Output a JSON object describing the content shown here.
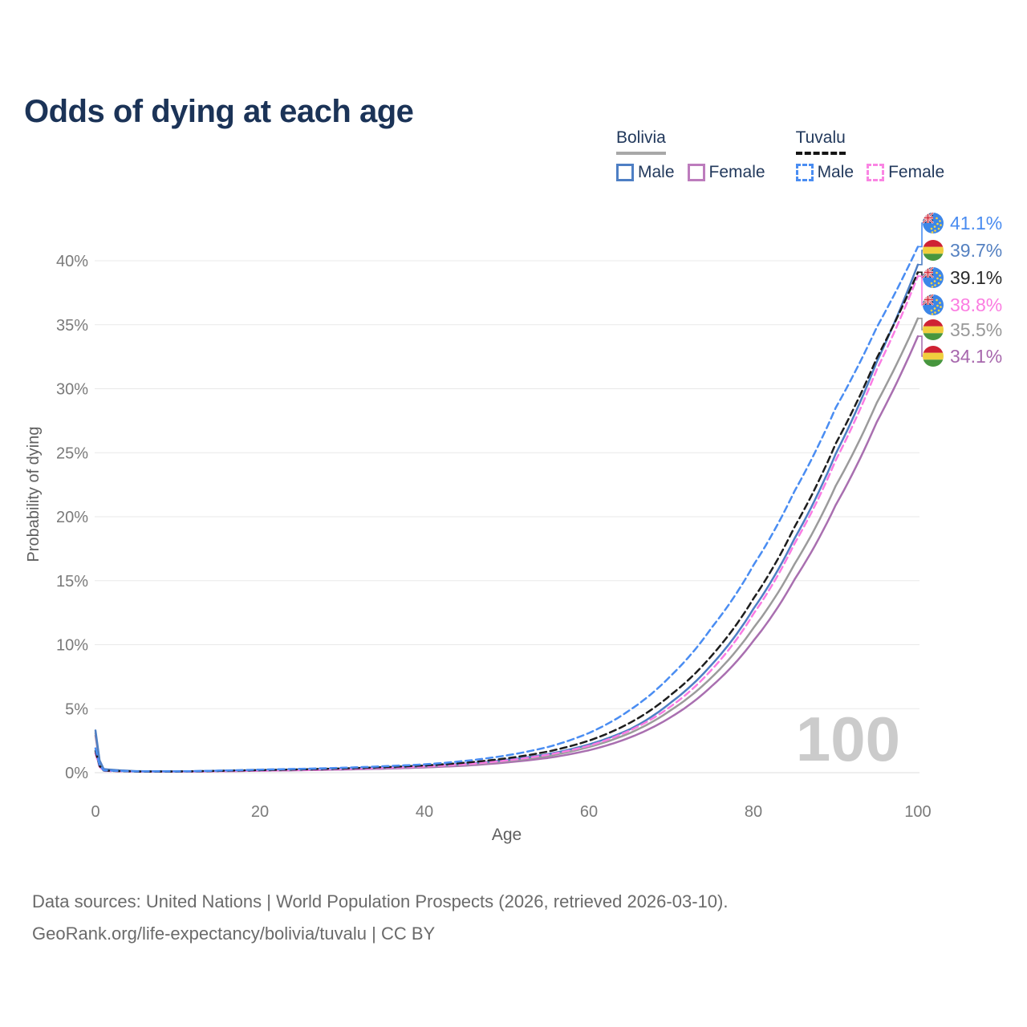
{
  "title": "Odds of dying at each age",
  "legend": {
    "groups": [
      {
        "id": "bolivia",
        "label": "Bolivia",
        "line_style": "solid",
        "underline_color": "#a8a8a8",
        "items": [
          {
            "label": "Male",
            "color": "#4e7fc4",
            "dashed": false
          },
          {
            "label": "Female",
            "color": "#bd7cbd",
            "dashed": false
          }
        ]
      },
      {
        "id": "tuvalu",
        "label": "Tuvalu",
        "line_style": "dashed",
        "underline_color": "#141414",
        "items": [
          {
            "label": "Male",
            "color": "#4a8df2",
            "dashed": true
          },
          {
            "label": "Female",
            "color": "#fa85e3",
            "dashed": true
          }
        ]
      }
    ]
  },
  "chart_data": {
    "type": "line",
    "title": "Odds of dying at each age",
    "xlabel": "Age",
    "ylabel": "Probability of dying",
    "xlim": [
      0,
      100
    ],
    "ylim": [
      0,
      43
    ],
    "x_ticks": [
      0,
      20,
      40,
      60,
      80,
      100
    ],
    "y_ticks": [
      0,
      5,
      10,
      15,
      20,
      25,
      30,
      35,
      40
    ],
    "y_tick_suffix": "%",
    "grid": "horizontal",
    "legend_position": "top-right",
    "watermark": "100",
    "ages": [
      0,
      1,
      5,
      10,
      15,
      20,
      25,
      30,
      35,
      40,
      45,
      50,
      55,
      60,
      65,
      70,
      75,
      80,
      85,
      90,
      95,
      100
    ],
    "series": [
      {
        "name": "Bolivia Female",
        "country": "Bolivia",
        "sex": "female",
        "color": "#a96fb0",
        "dashed": false,
        "flag": "bolivia",
        "end_label": "34.1%",
        "end_value": 34.1,
        "label_color": "#a767ad",
        "values": [
          2.9,
          0.22,
          0.1,
          0.08,
          0.11,
          0.15,
          0.19,
          0.24,
          0.31,
          0.41,
          0.55,
          0.8,
          1.15,
          1.75,
          2.75,
          4.35,
          6.8,
          10.3,
          15.1,
          20.9,
          27.4,
          34.1
        ]
      },
      {
        "name": "Bolivia Both sexes",
        "country": "Bolivia",
        "sex": "both",
        "color": "#9b9b9b",
        "dashed": false,
        "flag": "bolivia",
        "end_label": "35.5%",
        "end_value": 35.5,
        "label_color": "#989898",
        "values": [
          3.1,
          0.25,
          0.11,
          0.09,
          0.13,
          0.18,
          0.22,
          0.28,
          0.36,
          0.47,
          0.63,
          0.9,
          1.3,
          2.0,
          3.1,
          4.9,
          7.5,
          11.3,
          16.3,
          22.4,
          28.9,
          35.5
        ]
      },
      {
        "name": "Bolivia Male",
        "country": "Bolivia",
        "sex": "male",
        "color": "#4e7fc4",
        "dashed": false,
        "flag": "bolivia",
        "end_label": "39.7%",
        "end_value": 39.7,
        "label_color": "#5581c1",
        "values": [
          3.3,
          0.28,
          0.12,
          0.1,
          0.15,
          0.2,
          0.25,
          0.31,
          0.4,
          0.52,
          0.7,
          1.0,
          1.45,
          2.2,
          3.4,
          5.5,
          8.5,
          12.8,
          18.3,
          24.9,
          32.1,
          39.7
        ]
      },
      {
        "name": "Tuvalu Female",
        "country": "Tuvalu",
        "sex": "female",
        "color": "#fa7ce3",
        "dashed": true,
        "flag": "tuvalu",
        "end_label": "38.8%",
        "end_value": 38.8,
        "label_color": "#fb7ce1",
        "values": [
          1.5,
          0.14,
          0.08,
          0.08,
          0.11,
          0.16,
          0.21,
          0.28,
          0.37,
          0.48,
          0.66,
          0.95,
          1.4,
          2.1,
          3.3,
          5.2,
          8.1,
          12.4,
          17.9,
          24.4,
          31.5,
          38.8
        ]
      },
      {
        "name": "Tuvalu Both sexes",
        "country": "Tuvalu",
        "sex": "both",
        "color": "#1d1d1d",
        "dashed": true,
        "flag": "tuvalu",
        "end_label": "39.1%",
        "end_value": 39.1,
        "label_color": "#2b2b2b",
        "values": [
          1.7,
          0.16,
          0.09,
          0.09,
          0.14,
          0.2,
          0.26,
          0.33,
          0.43,
          0.56,
          0.78,
          1.12,
          1.65,
          2.5,
          3.9,
          6.1,
          9.2,
          13.6,
          19.2,
          25.7,
          32.4,
          39.1
        ]
      },
      {
        "name": "Tuvalu Male",
        "country": "Tuvalu",
        "sex": "male",
        "color": "#4a8df2",
        "dashed": true,
        "flag": "tuvalu",
        "end_label": "41.1%",
        "end_value": 41.1,
        "label_color": "#4a8cf0",
        "values": [
          1.9,
          0.18,
          0.1,
          0.1,
          0.16,
          0.24,
          0.3,
          0.38,
          0.5,
          0.65,
          0.92,
          1.35,
          2.0,
          3.1,
          4.9,
          7.6,
          11.4,
          16.2,
          22.0,
          28.5,
          34.8,
          41.1
        ]
      }
    ]
  },
  "footer": {
    "line1": "Data sources: United Nations | World Population Prospects (2026, retrieved 2026-03-10).",
    "line2": "GeoRank.org/life-expectancy/bolivia/tuvalu | CC BY"
  }
}
